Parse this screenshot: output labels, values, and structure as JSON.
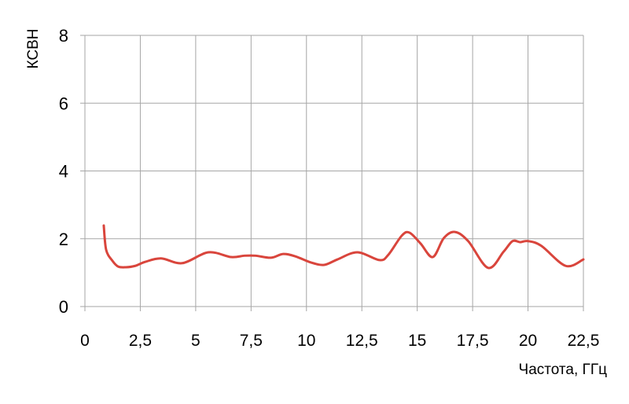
{
  "chart_data": {
    "type": "line",
    "title": "",
    "xlabel": "Частота, ГГц",
    "ylabel": "КСВН",
    "xlim": [
      0,
      22.5
    ],
    "ylim": [
      0,
      8
    ],
    "xticks": [
      "0",
      "2,5",
      "5",
      "7,5",
      "10",
      "12,5",
      "15",
      "17,5",
      "20",
      "22,5"
    ],
    "xtick_values": [
      0,
      2.5,
      5,
      7.5,
      10,
      12.5,
      15,
      17.5,
      20,
      22.5
    ],
    "yticks": [
      "0",
      "2",
      "4",
      "6",
      "8"
    ],
    "ytick_values": [
      0,
      2,
      4,
      6,
      8
    ],
    "grid": true,
    "colors": {
      "line": "#d9453c",
      "grid": "#a6a6a6"
    },
    "series": [
      {
        "x": [
          0.85,
          0.96,
          1.24,
          1.5,
          1.85,
          2.27,
          2.73,
          3.44,
          4.4,
          5.57,
          6.6,
          7.2,
          7.7,
          8.4,
          8.95,
          9.5,
          10.2,
          10.8,
          11.4,
          12.3,
          13.3,
          13.7,
          14.3,
          14.65,
          15.15,
          15.7,
          16.2,
          16.7,
          17.3,
          18.2,
          18.9,
          19.3,
          19.65,
          20.0,
          20.6,
          21.7,
          22.5
        ],
        "y": [
          2.39,
          1.67,
          1.35,
          1.18,
          1.16,
          1.2,
          1.32,
          1.42,
          1.28,
          1.6,
          1.46,
          1.5,
          1.5,
          1.44,
          1.55,
          1.48,
          1.3,
          1.23,
          1.39,
          1.6,
          1.37,
          1.53,
          2.09,
          2.18,
          1.86,
          1.46,
          2.02,
          2.2,
          1.93,
          1.14,
          1.62,
          1.93,
          1.9,
          1.93,
          1.79,
          1.2,
          1.39
        ]
      }
    ]
  }
}
